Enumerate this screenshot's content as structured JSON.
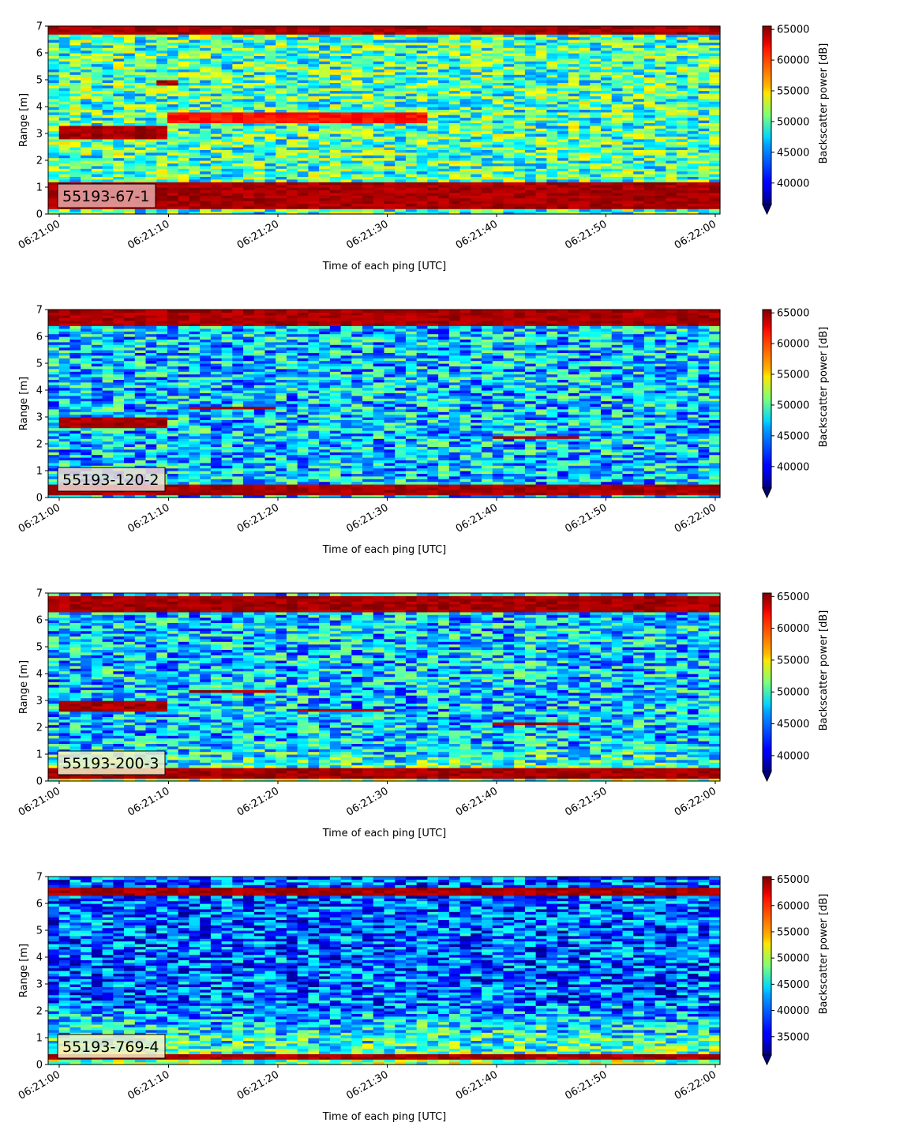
{
  "chart_data": [
    {
      "type": "heatmap",
      "panel_label": "55193-67-1",
      "label_box_color": "#e8a8a8",
      "xlabel": "Time of each ping [UTC]",
      "ylabel": "Range [m]",
      "xticklabels": [
        "06:21:00",
        "06:21:10",
        "06:21:20",
        "06:21:30",
        "06:21:40",
        "06:21:50",
        "06:22:00"
      ],
      "x_range": [
        "06:21:00",
        "06:22:00"
      ],
      "yticks": [
        0,
        1,
        2,
        3,
        4,
        5,
        6,
        7
      ],
      "ylim": [
        0,
        7
      ],
      "colormap": "jet",
      "colorbar": {
        "label": "Backscatter power [dB]",
        "ticks": [
          40000,
          45000,
          50000,
          55000,
          60000,
          65000
        ],
        "range": [
          36500,
          65535
        ],
        "extend": "min"
      },
      "bands": [
        {
          "range_m": [
            0.2,
            1.0
          ],
          "level": "high"
        },
        {
          "range_m": [
            1.0,
            1.2
          ],
          "level": "high"
        },
        {
          "range_m": [
            2.8,
            3.3
          ],
          "level": "high",
          "time_s": [
            0,
            10
          ]
        },
        {
          "range_m": [
            3.4,
            3.8
          ],
          "level": "medium",
          "time_s": [
            10,
            33
          ]
        },
        {
          "range_m": [
            4.8,
            5.0
          ],
          "level": "high",
          "time_s": [
            9,
            11
          ]
        },
        {
          "range_m": [
            6.7,
            7.0
          ],
          "level": "high"
        }
      ]
    },
    {
      "type": "heatmap",
      "panel_label": "55193-120-2",
      "label_box_color": "#f2dad6",
      "xlabel": "Time of each ping [UTC]",
      "ylabel": "Range [m]",
      "xticklabels": [
        "06:21:00",
        "06:21:10",
        "06:21:20",
        "06:21:30",
        "06:21:40",
        "06:21:50",
        "06:22:00"
      ],
      "x_range": [
        "06:21:00",
        "06:22:00"
      ],
      "yticks": [
        0,
        1,
        2,
        3,
        4,
        5,
        6,
        7
      ],
      "ylim": [
        0,
        7
      ],
      "colormap": "jet",
      "colorbar": {
        "label": "Backscatter power [dB]",
        "ticks": [
          40000,
          45000,
          50000,
          55000,
          60000,
          65000
        ],
        "range": [
          36500,
          65535
        ],
        "extend": "min"
      },
      "bands": [
        {
          "range_m": [
            0.1,
            0.5
          ],
          "level": "high"
        },
        {
          "range_m": [
            2.6,
            3.0
          ],
          "level": "high",
          "time_s": [
            0,
            10
          ]
        },
        {
          "range_m": [
            3.3,
            3.4
          ],
          "level": "high",
          "time_s": [
            12,
            19
          ]
        },
        {
          "range_m": [
            2.2,
            2.3
          ],
          "level": "high",
          "time_s": [
            39,
            46
          ]
        },
        {
          "range_m": [
            6.4,
            7.0
          ],
          "level": "high"
        }
      ]
    },
    {
      "type": "heatmap",
      "panel_label": "55193-200-3",
      "label_box_color": "#f5f0c8",
      "xlabel": "Time of each ping [UTC]",
      "ylabel": "Range [m]",
      "xticklabels": [
        "06:21:00",
        "06:21:10",
        "06:21:20",
        "06:21:30",
        "06:21:40",
        "06:21:50",
        "06:22:00"
      ],
      "x_range": [
        "06:21:00",
        "06:22:00"
      ],
      "yticks": [
        0,
        1,
        2,
        3,
        4,
        5,
        6,
        7
      ],
      "ylim": [
        0,
        7
      ],
      "colormap": "jet",
      "colorbar": {
        "label": "Backscatter power [dB]",
        "ticks": [
          40000,
          45000,
          50000,
          55000,
          60000,
          65000
        ],
        "range": [
          37500,
          65535
        ],
        "extend": "min"
      },
      "bands": [
        {
          "range_m": [
            0.1,
            0.5
          ],
          "level": "high"
        },
        {
          "range_m": [
            2.6,
            3.0
          ],
          "level": "high",
          "time_s": [
            0,
            10
          ]
        },
        {
          "range_m": [
            3.3,
            3.4
          ],
          "level": "high",
          "time_s": [
            12,
            19
          ]
        },
        {
          "range_m": [
            2.6,
            2.7
          ],
          "level": "high",
          "time_s": [
            21,
            29
          ]
        },
        {
          "range_m": [
            2.1,
            2.2
          ],
          "level": "high",
          "time_s": [
            39,
            46
          ]
        },
        {
          "range_m": [
            6.3,
            6.9
          ],
          "level": "high"
        }
      ]
    },
    {
      "type": "heatmap",
      "panel_label": "55193-769-4",
      "label_box_color": "#f5f0c8",
      "xlabel": "Time of each ping [UTC]",
      "ylabel": "Range [m]",
      "xticklabels": [
        "06:21:00",
        "06:21:10",
        "06:21:20",
        "06:21:30",
        "06:21:40",
        "06:21:50",
        "06:22:00"
      ],
      "x_range": [
        "06:21:00",
        "06:22:00"
      ],
      "yticks": [
        0,
        1,
        2,
        3,
        4,
        5,
        6,
        7
      ],
      "ylim": [
        0,
        7
      ],
      "colormap": "jet",
      "colorbar": {
        "label": "Backscatter power [dB]",
        "ticks": [
          35000,
          40000,
          45000,
          50000,
          55000,
          60000,
          65000
        ],
        "range": [
          31500,
          65535
        ],
        "extend": "min"
      },
      "bands": [
        {
          "range_m": [
            0.2,
            0.35
          ],
          "level": "high"
        },
        {
          "range_m": [
            6.3,
            6.6
          ],
          "level": "high"
        }
      ]
    }
  ]
}
